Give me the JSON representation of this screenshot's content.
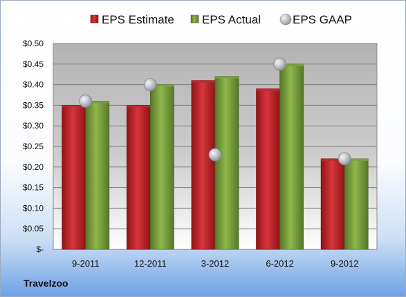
{
  "company": "Travelzoo",
  "chart_data": {
    "type": "bar",
    "categories": [
      "9-2011",
      "12-2011",
      "3-2012",
      "6-2012",
      "9-2012"
    ],
    "series": [
      {
        "name": "EPS Estimate",
        "kind": "bar",
        "color": "#c0282d",
        "values": [
          0.35,
          0.35,
          0.41,
          0.39,
          0.22
        ]
      },
      {
        "name": "EPS Actual",
        "kind": "bar",
        "color": "#7aa33a",
        "values": [
          0.36,
          0.4,
          0.42,
          0.45,
          0.22
        ]
      },
      {
        "name": "EPS GAAP",
        "kind": "marker",
        "color": "#b8bcc4",
        "values": [
          0.36,
          0.4,
          0.23,
          0.45,
          0.22
        ]
      }
    ],
    "y_ticks": [
      "$-",
      "$0.05",
      "$0.10",
      "$0.15",
      "$0.20",
      "$0.25",
      "$0.30",
      "$0.35",
      "$0.40",
      "$0.45",
      "$0.50"
    ],
    "ylim": [
      0,
      0.5
    ],
    "grid": true,
    "legend_position": "top"
  }
}
